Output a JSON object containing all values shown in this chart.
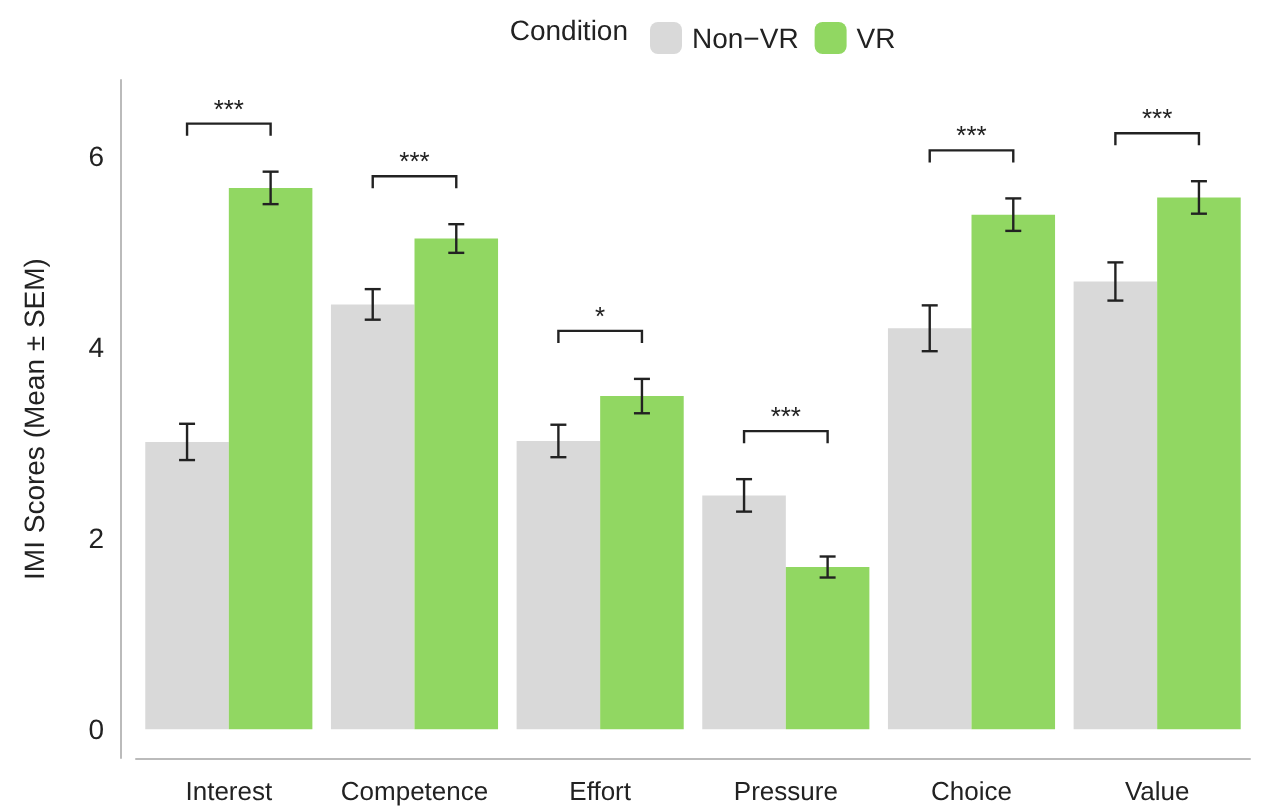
{
  "chart_data": {
    "type": "bar",
    "ylabel": "IMI Scores (Mean ± SEM)",
    "legend_title": "Condition",
    "legend": "top",
    "grid": false,
    "categories": [
      "Interest",
      "Competence",
      "Effort",
      "Pressure",
      "Choice",
      "Value"
    ],
    "ylim": [
      -0.3,
      6.8
    ],
    "yticks": [
      0,
      2,
      4,
      6
    ],
    "series": [
      {
        "name": "Non−VR",
        "color": "#d9d9d9",
        "values": [
          3.01,
          4.45,
          3.02,
          2.45,
          4.2,
          4.69
        ],
        "errors": [
          0.19,
          0.16,
          0.17,
          0.17,
          0.24,
          0.2
        ]
      },
      {
        "name": "VR",
        "color": "#91d762",
        "values": [
          5.67,
          5.14,
          3.49,
          1.7,
          5.39,
          5.57
        ],
        "errors": [
          0.17,
          0.15,
          0.18,
          0.11,
          0.17,
          0.17
        ]
      }
    ],
    "annotations": [
      "***",
      "***",
      "*",
      "***",
      "***",
      "***"
    ]
  }
}
